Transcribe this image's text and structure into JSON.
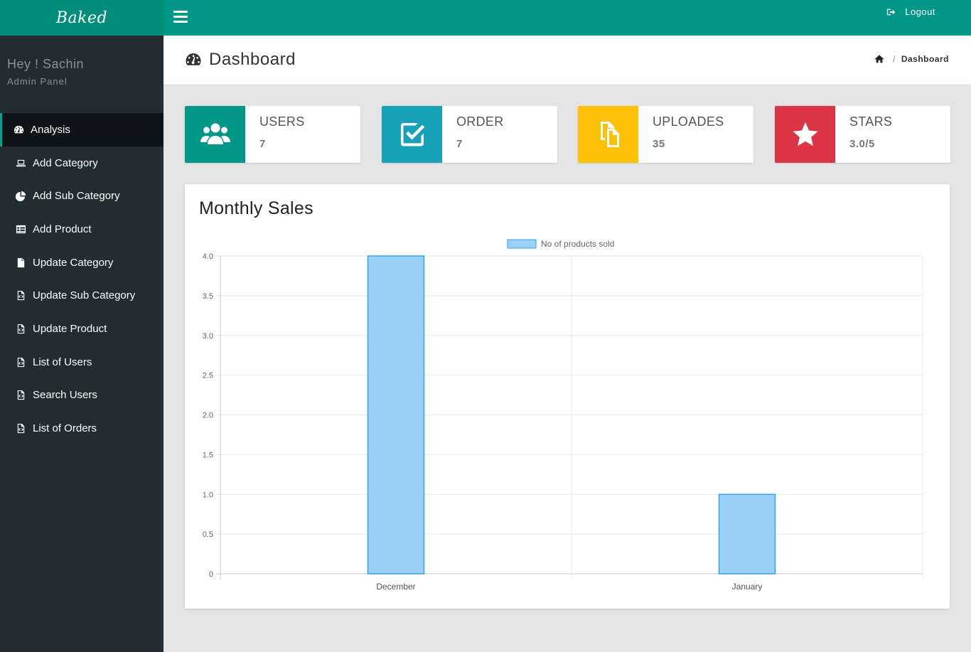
{
  "sidebar": {
    "brand": "Baked",
    "greeting": "Hey ! Sachin",
    "role": "Admin Panel",
    "items": [
      {
        "label": "Analysis",
        "icon": "dashboard-icon",
        "active": true
      },
      {
        "label": "Add Category",
        "icon": "laptop-icon"
      },
      {
        "label": "Add Sub Category",
        "icon": "pie-chart-icon"
      },
      {
        "label": "Add Product",
        "icon": "table-icon"
      },
      {
        "label": "Update Category",
        "icon": "file-icon"
      },
      {
        "label": "Update Sub Category",
        "icon": "file-code-icon"
      },
      {
        "label": "Update Product",
        "icon": "file-code-icon"
      },
      {
        "label": "List of Users",
        "icon": "file-code-icon"
      },
      {
        "label": "Search Users",
        "icon": "file-code-icon"
      },
      {
        "label": "List of Orders",
        "icon": "file-code-icon"
      }
    ]
  },
  "topbar": {
    "logout_label": "Logout"
  },
  "header": {
    "title": "Dashboard",
    "breadcrumb_current": "Dashboard"
  },
  "stats": [
    {
      "label": "USERS",
      "value": "7",
      "color": "#009688",
      "icon": "users-icon"
    },
    {
      "label": "ORDER",
      "value": "7",
      "color": "#17a2b8",
      "icon": "check-square-icon"
    },
    {
      "label": "UPLOADES",
      "value": "35",
      "color": "#ffc107",
      "icon": "files-icon"
    },
    {
      "label": "STARS",
      "value": "3.0/5",
      "color": "#dc3545",
      "icon": "star-icon"
    }
  ],
  "chart": {
    "title": "Monthly Sales"
  },
  "chart_data": {
    "type": "bar",
    "categories": [
      "December",
      "January"
    ],
    "series": [
      {
        "name": "No of products sold",
        "values": [
          4,
          1
        ]
      }
    ],
    "ylim": [
      0,
      4
    ],
    "yticks": [
      "4.0",
      "3.5",
      "3.0",
      "2.5",
      "2.0",
      "1.5",
      "1.0",
      "0.5",
      "0"
    ],
    "bar_fill": "#9ad0f5",
    "bar_stroke": "#36a2eb",
    "grid": true,
    "legend": "top"
  }
}
